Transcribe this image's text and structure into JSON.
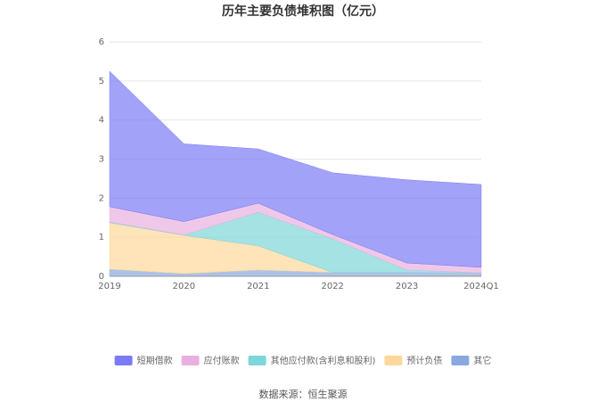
{
  "chart_data": {
    "type": "stacked_area",
    "title": "历年主要负债堆积图（亿元）",
    "categories": [
      "2019",
      "2020",
      "2021",
      "2022",
      "2023",
      "2024Q1"
    ],
    "series": [
      {
        "name": "短期借款",
        "color": "#7b7bf5",
        "values": [
          3.47,
          1.99,
          1.39,
          1.58,
          2.13,
          2.12
        ]
      },
      {
        "name": "应付账款",
        "color": "#e8b0e0",
        "values": [
          0.39,
          0.34,
          0.23,
          0.11,
          0.18,
          0.14
        ]
      },
      {
        "name": "其他应付款(含利息和股利)",
        "color": "#7dd6d8",
        "values": [
          0.02,
          0.01,
          0.86,
          0.86,
          0.06,
          0
        ]
      },
      {
        "name": "预计负债",
        "color": "#fdd89a",
        "values": [
          1.19,
          0.98,
          0.62,
          0,
          0,
          0
        ]
      },
      {
        "name": "其它",
        "color": "#8aa8e0",
        "values": [
          0.18,
          0.07,
          0.16,
          0.1,
          0.1,
          0.09
        ]
      }
    ],
    "ylim": [
      0,
      6
    ],
    "yticks": [
      0,
      1,
      2,
      3,
      4,
      5,
      6
    ],
    "grid": true,
    "legend": "bottom",
    "source": "数据来源：恒生聚源"
  }
}
